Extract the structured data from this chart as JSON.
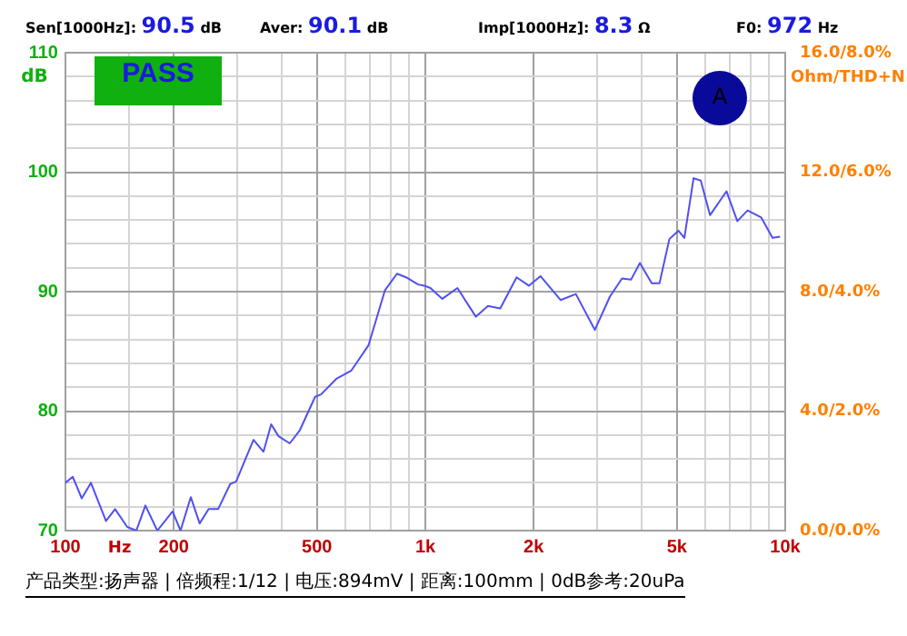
{
  "chart_data": {
    "type": "line",
    "xlabel": "Hz",
    "ylabel": "dB",
    "y2label": "Ohm/THD+N",
    "log": "x",
    "grid": true,
    "legend": false,
    "marker": "none",
    "line_style": "solid",
    "x": [
      100,
      104.8,
      111,
      117.7,
      129.6,
      137.4,
      148.5,
      157.4,
      166.8,
      180,
      198.5,
      208.8,
      223,
      236,
      250,
      265.6,
      287,
      298,
      333,
      355,
      373,
      391,
      420,
      448,
      494,
      513,
      566,
      623,
      695,
      772,
      834,
      884,
      955,
      993,
      1033,
      1115,
      1228,
      1382,
      1493,
      1615,
      1793,
      1939,
      2089,
      2375,
      2620,
      2958,
      3259,
      3520,
      3728,
      3946,
      4257,
      4474,
      4766,
      5050,
      5245,
      5564,
      5826,
      6180,
      6870,
      7361,
      7861,
      8580,
      9220,
      9680
    ],
    "series": [
      {
        "color": "#5050f0",
        "values": [
          74.0,
          74.5,
          72.7,
          74.0,
          70.8,
          71.8,
          70.3,
          70.0,
          72.1,
          70.0,
          71.6,
          70.0,
          72.8,
          70.6,
          71.8,
          71.8,
          73.9,
          74.1,
          77.6,
          76.6,
          78.9,
          77.9,
          77.3,
          78.4,
          81.2,
          81.4,
          82.7,
          83.4,
          85.5,
          90.1,
          91.5,
          91.2,
          90.6,
          90.5,
          90.3,
          89.4,
          90.3,
          87.9,
          88.8,
          88.6,
          91.2,
          90.5,
          91.3,
          89.3,
          89.8,
          86.8,
          89.6,
          91.1,
          91.0,
          92.4,
          90.7,
          90.7,
          94.4,
          95.1,
          94.5,
          99.5,
          99.3,
          96.4,
          98.4,
          95.9,
          96.8,
          96.2,
          94.5,
          94.6
        ]
      }
    ],
    "xlim": [
      100,
      10000
    ],
    "xticks": [
      100,
      {
        "value": 150,
        "label": null
      },
      200,
      {
        "value": 300,
        "label": null
      },
      {
        "value": 400,
        "label": null
      },
      500,
      {
        "value": 600,
        "label": null
      },
      {
        "value": 700,
        "label": null
      },
      {
        "value": 800,
        "label": null
      },
      {
        "value": 900,
        "label": null
      },
      {
        "value": 1000,
        "label": "1k"
      },
      {
        "value": 2000,
        "label": "2k"
      },
      {
        "value": 3000,
        "label": null
      },
      {
        "value": 4000,
        "label": null
      },
      {
        "value": 5000,
        "label": "5k"
      },
      {
        "value": 6000,
        "label": null
      },
      {
        "value": 7000,
        "label": null
      },
      {
        "value": 8000,
        "label": null
      },
      {
        "value": 9000,
        "label": null
      },
      {
        "value": 10000,
        "label": "10k"
      }
    ],
    "ylim": [
      70,
      110
    ],
    "yticks": [
      70,
      {
        "value": 72,
        "label": null
      },
      {
        "value": 74,
        "label": null
      },
      {
        "value": 76,
        "label": null
      },
      {
        "value": 78,
        "label": null
      },
      80,
      {
        "value": 82,
        "label": null
      },
      {
        "value": 84,
        "label": null
      },
      {
        "value": 86,
        "label": null
      },
      {
        "value": 88,
        "label": null
      },
      90,
      {
        "value": 92,
        "label": null
      },
      {
        "value": 94,
        "label": null
      },
      {
        "value": 96,
        "label": null
      },
      {
        "value": 98,
        "label": null
      },
      100,
      {
        "value": 102,
        "label": null
      },
      {
        "value": 104,
        "label": null
      },
      {
        "value": 106,
        "label": null
      },
      {
        "value": 108,
        "label": null
      },
      110
    ],
    "annotations": [
      "Sen[1000Hz]: 90.5 dB",
      "Aver: 90.1 dB",
      "Imp[1000Hz]: 8.3 Ω",
      "F0: 972 Hz",
      "PASS",
      "A",
      "产品类型:扬声器 | 倍频程:1/12 | 电压:894mV | 距离:100mm | 0dB参考:20uPa",
      "0.0/0.0%",
      "4.0/2.0%",
      "8.0/4.0%",
      "12.0/6.0%",
      "16.0/8.0%"
    ]
  }
}
